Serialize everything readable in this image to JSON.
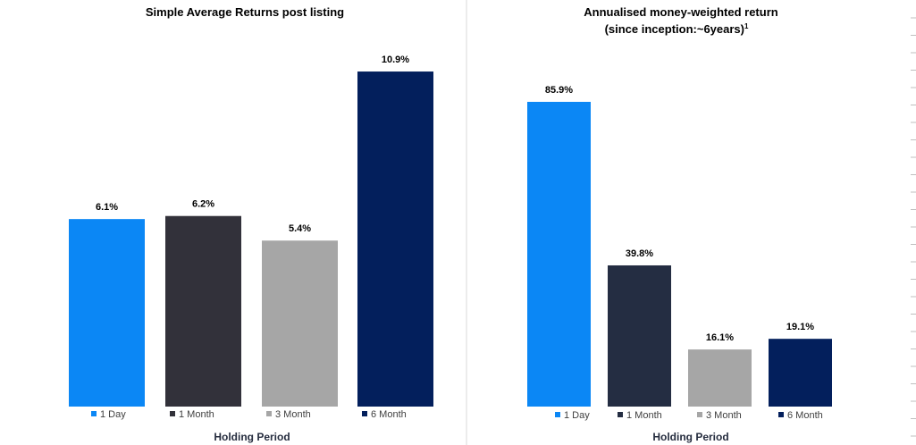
{
  "chart_data": [
    {
      "type": "bar",
      "title": "Simple Average Returns post listing",
      "xlabel": "Holding Period",
      "ylabel": "",
      "categories": [
        "1 Day",
        "1 Month",
        "3 Month",
        "6 Month"
      ],
      "values": [
        6.1,
        6.2,
        5.4,
        10.9
      ],
      "value_labels": [
        "6.1%",
        "6.2%",
        "5.4%",
        "10.9%"
      ],
      "unit": "%",
      "ylim": [
        0,
        11
      ],
      "grid": false,
      "colors": [
        "#0b87f5",
        "#32313a",
        "#a6a6a6",
        "#031f5c"
      ]
    },
    {
      "type": "bar",
      "title": "Annualised money-weighted return",
      "subtitle": "(since inception:~6years)",
      "subtitle_superscript": "1",
      "xlabel": "Holding Period",
      "ylabel": "",
      "categories": [
        "1 Day",
        "1 Month",
        "3 Month",
        "6 Month"
      ],
      "values": [
        85.9,
        39.8,
        16.1,
        19.1
      ],
      "value_labels": [
        "85.9%",
        "39.8%",
        "16.1%",
        "19.1%"
      ],
      "unit": "%",
      "ylim": [
        0,
        100
      ],
      "grid": false,
      "colors": [
        "#0b87f5",
        "#242d42",
        "#a6a6a6",
        "#031f5c"
      ]
    }
  ]
}
